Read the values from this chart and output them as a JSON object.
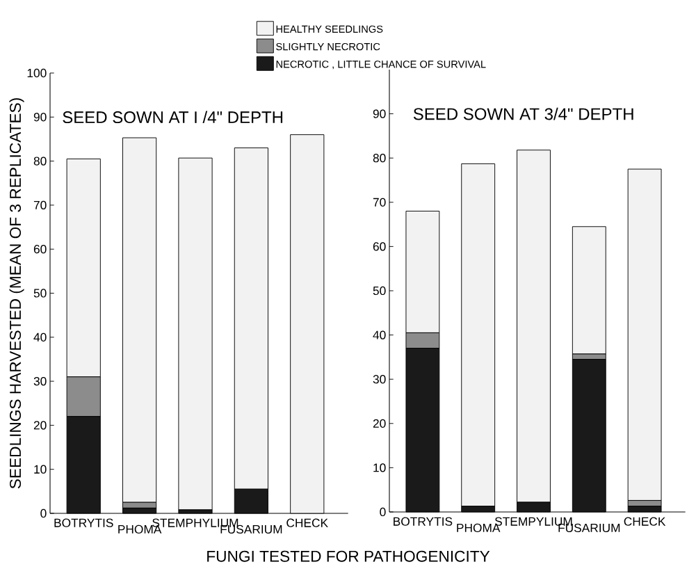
{
  "chart_data": [
    {
      "type": "bar",
      "title": "SEED SOWN AT I /4\" DEPTH",
      "xlabel": "FUNGI TESTED FOR PATHOGENICITY",
      "ylabel": "SEEDLINGS HARVESTED (MEAN OF 3 REPLICATES)",
      "stacked": true,
      "legend": "top",
      "categories": [
        "BOTRYTIS",
        "PHOMA",
        "STEMPHYLIUM",
        "FUSARIUM",
        "CHECK"
      ],
      "series": [
        {
          "name": "NECROTIC , LITTLE CHANCE OF SURVIVAL",
          "color": "#1a1a1a",
          "values": [
            22,
            1.2,
            0.8,
            5.5,
            0
          ]
        },
        {
          "name": "SLIGHTLY NECROTIC",
          "color": "#8c8c8c",
          "values": [
            9,
            1.3,
            0,
            0,
            0
          ]
        },
        {
          "name": "HEALTHY SEEDLINGS",
          "color": "#f2f2f2",
          "values": [
            49.5,
            82.8,
            79.9,
            77.5,
            86
          ]
        }
      ],
      "ylim": [
        0,
        100
      ],
      "yticks": [
        0,
        10,
        20,
        30,
        40,
        50,
        60,
        70,
        80,
        90,
        100
      ]
    },
    {
      "type": "bar",
      "title": "SEED SOWN AT 3/4\" DEPTH",
      "stacked": true,
      "categories": [
        "BOTRYTIS",
        "PHOMA",
        "STEMPYLIUM",
        "FUSARIUM",
        "CHECK"
      ],
      "series": [
        {
          "color": "#1a1a1a",
          "values": [
            37,
            1.3,
            2.2,
            34.5,
            1.3
          ]
        },
        {
          "color": "#8c8c8c",
          "values": [
            3.5,
            0,
            0,
            1.2,
            1.3
          ]
        },
        {
          "color": "#f2f2f2",
          "values": [
            27.5,
            77.4,
            79.6,
            28.8,
            74.9
          ]
        }
      ],
      "ylim": [
        0,
        100
      ],
      "yticks": [
        0,
        10,
        20,
        30,
        40,
        50,
        60,
        70,
        80,
        90
      ]
    }
  ]
}
